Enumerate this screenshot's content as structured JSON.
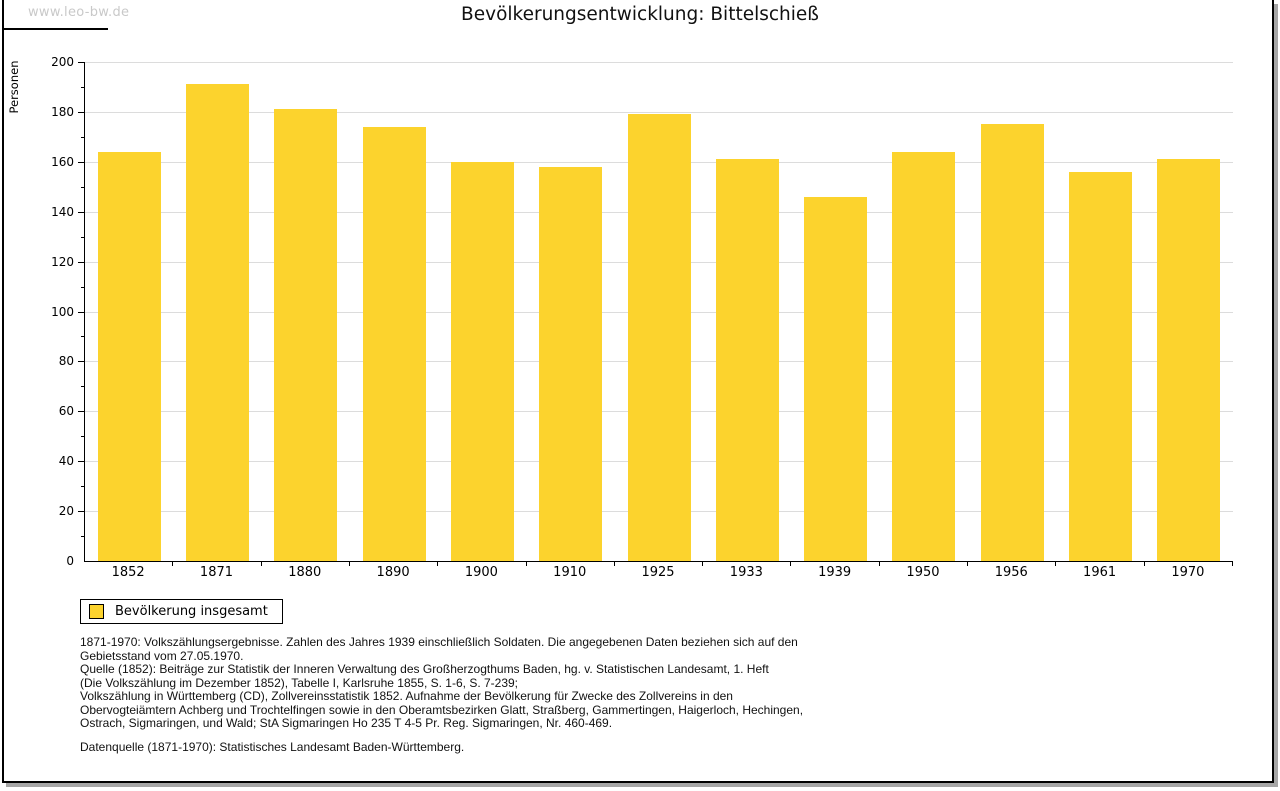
{
  "page": {
    "watermark": "www.leo-bw.de",
    "title": "Bevölkerungsentwicklung: Bittelschieß"
  },
  "chart_data": {
    "type": "bar",
    "title": "Bevölkerungsentwicklung: Bittelschieß",
    "xlabel": "",
    "ylabel": "Personen",
    "categories": [
      "1852",
      "1871",
      "1880",
      "1890",
      "1900",
      "1910",
      "1925",
      "1933",
      "1939",
      "1950",
      "1956",
      "1961",
      "1970"
    ],
    "values": [
      164,
      191,
      181,
      174,
      160,
      158,
      179,
      161,
      146,
      164,
      175,
      156,
      161
    ],
    "series_name": "Bevölkerung insgesamt",
    "ylim": [
      0,
      200
    ],
    "ytick_step": 20,
    "yminor_step": 10,
    "grid": true,
    "bar_color": "#FCD32D",
    "gridline_color": "#dcdcdc",
    "legend_position": "bottom-left"
  },
  "legend": {
    "label": "Bevölkerung insgesamt",
    "swatch_color": "#FCD32D"
  },
  "footer": {
    "source_lines": [
      "1871-1970: Volkszählungsergebnisse. Zahlen des Jahres 1939 einschließlich Soldaten. Die angegebenen Daten beziehen sich auf den",
      "Gebietsstand vom 27.05.1970.",
      "Quelle (1852): Beiträge zur Statistik der Inneren Verwaltung des Großherzogthums Baden, hg. v. Statistischen Landesamt, 1. Heft",
      "(Die Volkszählung im Dezember 1852), Tabelle I, Karlsruhe 1855, S. 1-6, S. 7-239;",
      "Volkszählung in Württemberg (CD), Zollvereinsstatistik 1852. Aufnahme der Bevölkerung für Zwecke des Zollvereins in den",
      "Obervogteiämtern Achberg und Trochtelfingen sowie in den Oberamtsbezirken Glatt, Straßberg, Gammertingen, Haigerloch, Hechingen,",
      "Ostrach, Sigmaringen, und Wald; StA Sigmaringen Ho 235 T 4-5 Pr. Reg. Sigmaringen, Nr. 460-469."
    ],
    "data_source": "Datenquelle (1871-1970): Statistisches Landesamt Baden-Württemberg."
  }
}
